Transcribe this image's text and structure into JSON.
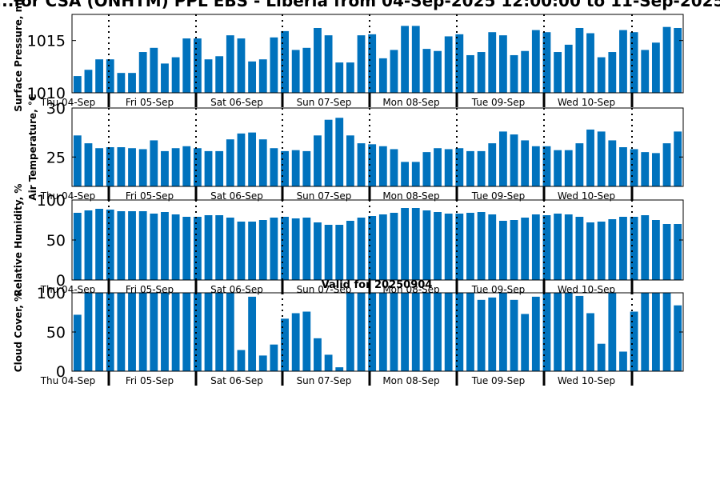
{
  "page_title": "...for CSA (ONHTM) PPL EBS - Liberia from 04-Sep-2025 12:00:00 to 11-Sep-2025",
  "valid_label": "Valid for 20250904",
  "colors": {
    "bar": "#0072bd",
    "axis": "#000000"
  },
  "x_labels": [
    "Thu 04-Sep",
    "Fri 05-Sep",
    "Sat 06-Sep",
    "Sun 07-Sep",
    "Mon 08-Sep",
    "Tue 09-Sep",
    "Wed 10-Sep"
  ],
  "chart_data": [
    {
      "type": "bar",
      "ylabel": "Surface Pressure, mb",
      "ylim": [
        1010,
        1017.5
      ],
      "yticks": [
        1010,
        1015
      ],
      "grid": false,
      "values": [
        1011.6,
        1012.2,
        1013.2,
        1013.2,
        1011.9,
        1011.9,
        1013.9,
        1014.3,
        1012.8,
        1013.4,
        1015.2,
        1015.2,
        1013.2,
        1013.5,
        1015.5,
        1015.2,
        1013.0,
        1013.2,
        1015.3,
        1015.9,
        1014.1,
        1014.3,
        1016.2,
        1015.5,
        1012.9,
        1012.9,
        1015.5,
        1015.6,
        1013.3,
        1014.1,
        1016.4,
        1016.4,
        1014.2,
        1014.0,
        1015.4,
        1015.6,
        1013.6,
        1013.9,
        1015.8,
        1015.5,
        1013.6,
        1014.0,
        1016.0,
        1015.8,
        1013.9,
        1014.6,
        1016.2,
        1015.7,
        1013.4,
        1013.9,
        1016.0,
        1015.8,
        1014.1,
        1014.8,
        1016.3,
        1016.2
      ]
    },
    {
      "type": "bar",
      "ylabel": "Air Temperature, °C",
      "ylim": [
        22,
        30
      ],
      "yticks": [
        25,
        30
      ],
      "grid": false,
      "values": [
        27.2,
        26.4,
        25.9,
        26.0,
        26.0,
        25.9,
        25.8,
        26.7,
        25.6,
        25.9,
        26.1,
        25.9,
        25.6,
        25.6,
        26.8,
        27.4,
        27.5,
        26.8,
        25.9,
        25.6,
        25.7,
        25.6,
        27.2,
        28.8,
        29.0,
        27.2,
        26.4,
        26.3,
        26.1,
        25.8,
        24.5,
        24.5,
        25.5,
        25.9,
        25.8,
        25.9,
        25.6,
        25.6,
        26.4,
        27.6,
        27.3,
        26.7,
        26.1,
        26.1,
        25.7,
        25.7,
        26.4,
        27.8,
        27.6,
        26.7,
        26.0,
        25.8,
        25.5,
        25.4,
        26.4,
        27.6
      ]
    },
    {
      "type": "bar",
      "ylabel": "Relative Humidity, %",
      "ylim": [
        0,
        100
      ],
      "yticks": [
        0,
        50,
        100
      ],
      "grid": false,
      "values": [
        84,
        87,
        89,
        88,
        86,
        86,
        86,
        83,
        85,
        82,
        79,
        79,
        81,
        81,
        78,
        73,
        73,
        75,
        78,
        79,
        77,
        78,
        72,
        69,
        69,
        74,
        78,
        80,
        82,
        84,
        90,
        90,
        87,
        85,
        83,
        83,
        84,
        85,
        82,
        74,
        75,
        78,
        82,
        81,
        83,
        82,
        79,
        72,
        73,
        76,
        79,
        79,
        81,
        75,
        70,
        70
      ]
    },
    {
      "type": "bar",
      "ylabel": "Cloud Cover, %",
      "ylim": [
        0,
        100
      ],
      "yticks": [
        0,
        50,
        100
      ],
      "grid": false,
      "values": [
        72,
        100,
        100,
        100,
        100,
        100,
        100,
        100,
        100,
        100,
        100,
        100,
        100,
        100,
        100,
        27,
        95,
        20,
        34,
        67,
        74,
        76,
        42,
        21,
        5,
        100,
        100,
        100,
        100,
        100,
        100,
        100,
        100,
        100,
        100,
        100,
        100,
        91,
        94,
        100,
        91,
        73,
        95,
        100,
        100,
        100,
        96,
        74,
        35,
        100,
        25,
        76,
        100,
        100,
        100,
        84
      ]
    }
  ]
}
